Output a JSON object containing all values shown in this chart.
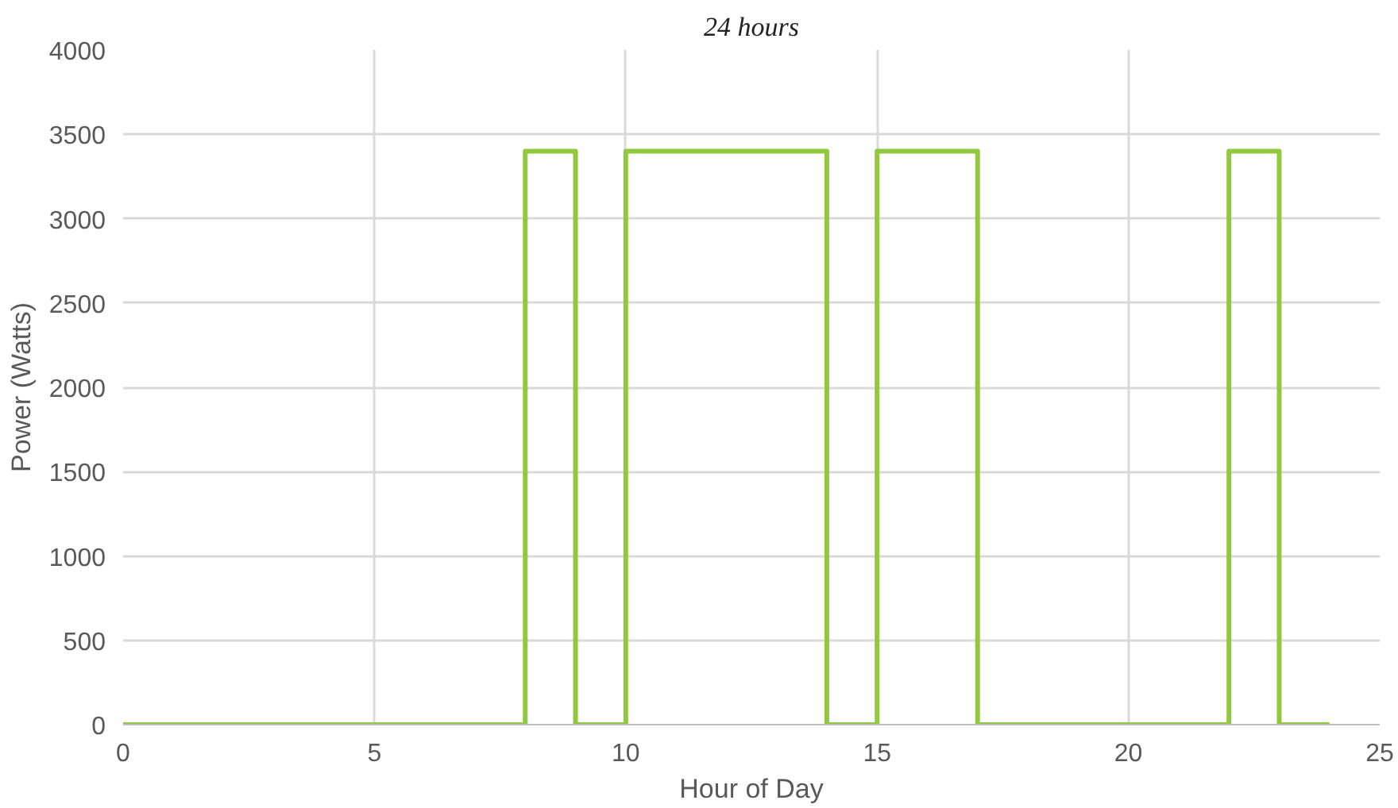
{
  "chart_data": {
    "type": "line",
    "title": "24 hours",
    "xlabel": "Hour of Day",
    "ylabel": "Power (Watts)",
    "x": [
      0,
      8,
      8,
      9,
      9,
      10,
      10,
      14,
      14,
      15,
      15,
      17,
      17,
      22,
      22,
      23,
      23,
      24
    ],
    "series": [
      {
        "color": "#92c83e",
        "values": [
          0,
          0,
          3400,
          3400,
          0,
          0,
          3400,
          3400,
          0,
          0,
          3400,
          3400,
          0,
          0,
          3400,
          3400,
          0,
          0
        ]
      }
    ],
    "xlim": [
      0,
      25
    ],
    "xticks": [
      0,
      5,
      10,
      15,
      20,
      25
    ],
    "ylim": [
      0,
      4000
    ],
    "yticks": [
      0,
      500,
      1000,
      1500,
      2000,
      2500,
      3000,
      3500,
      4000
    ],
    "grid": true,
    "marker": "none",
    "line_style": "solid"
  }
}
